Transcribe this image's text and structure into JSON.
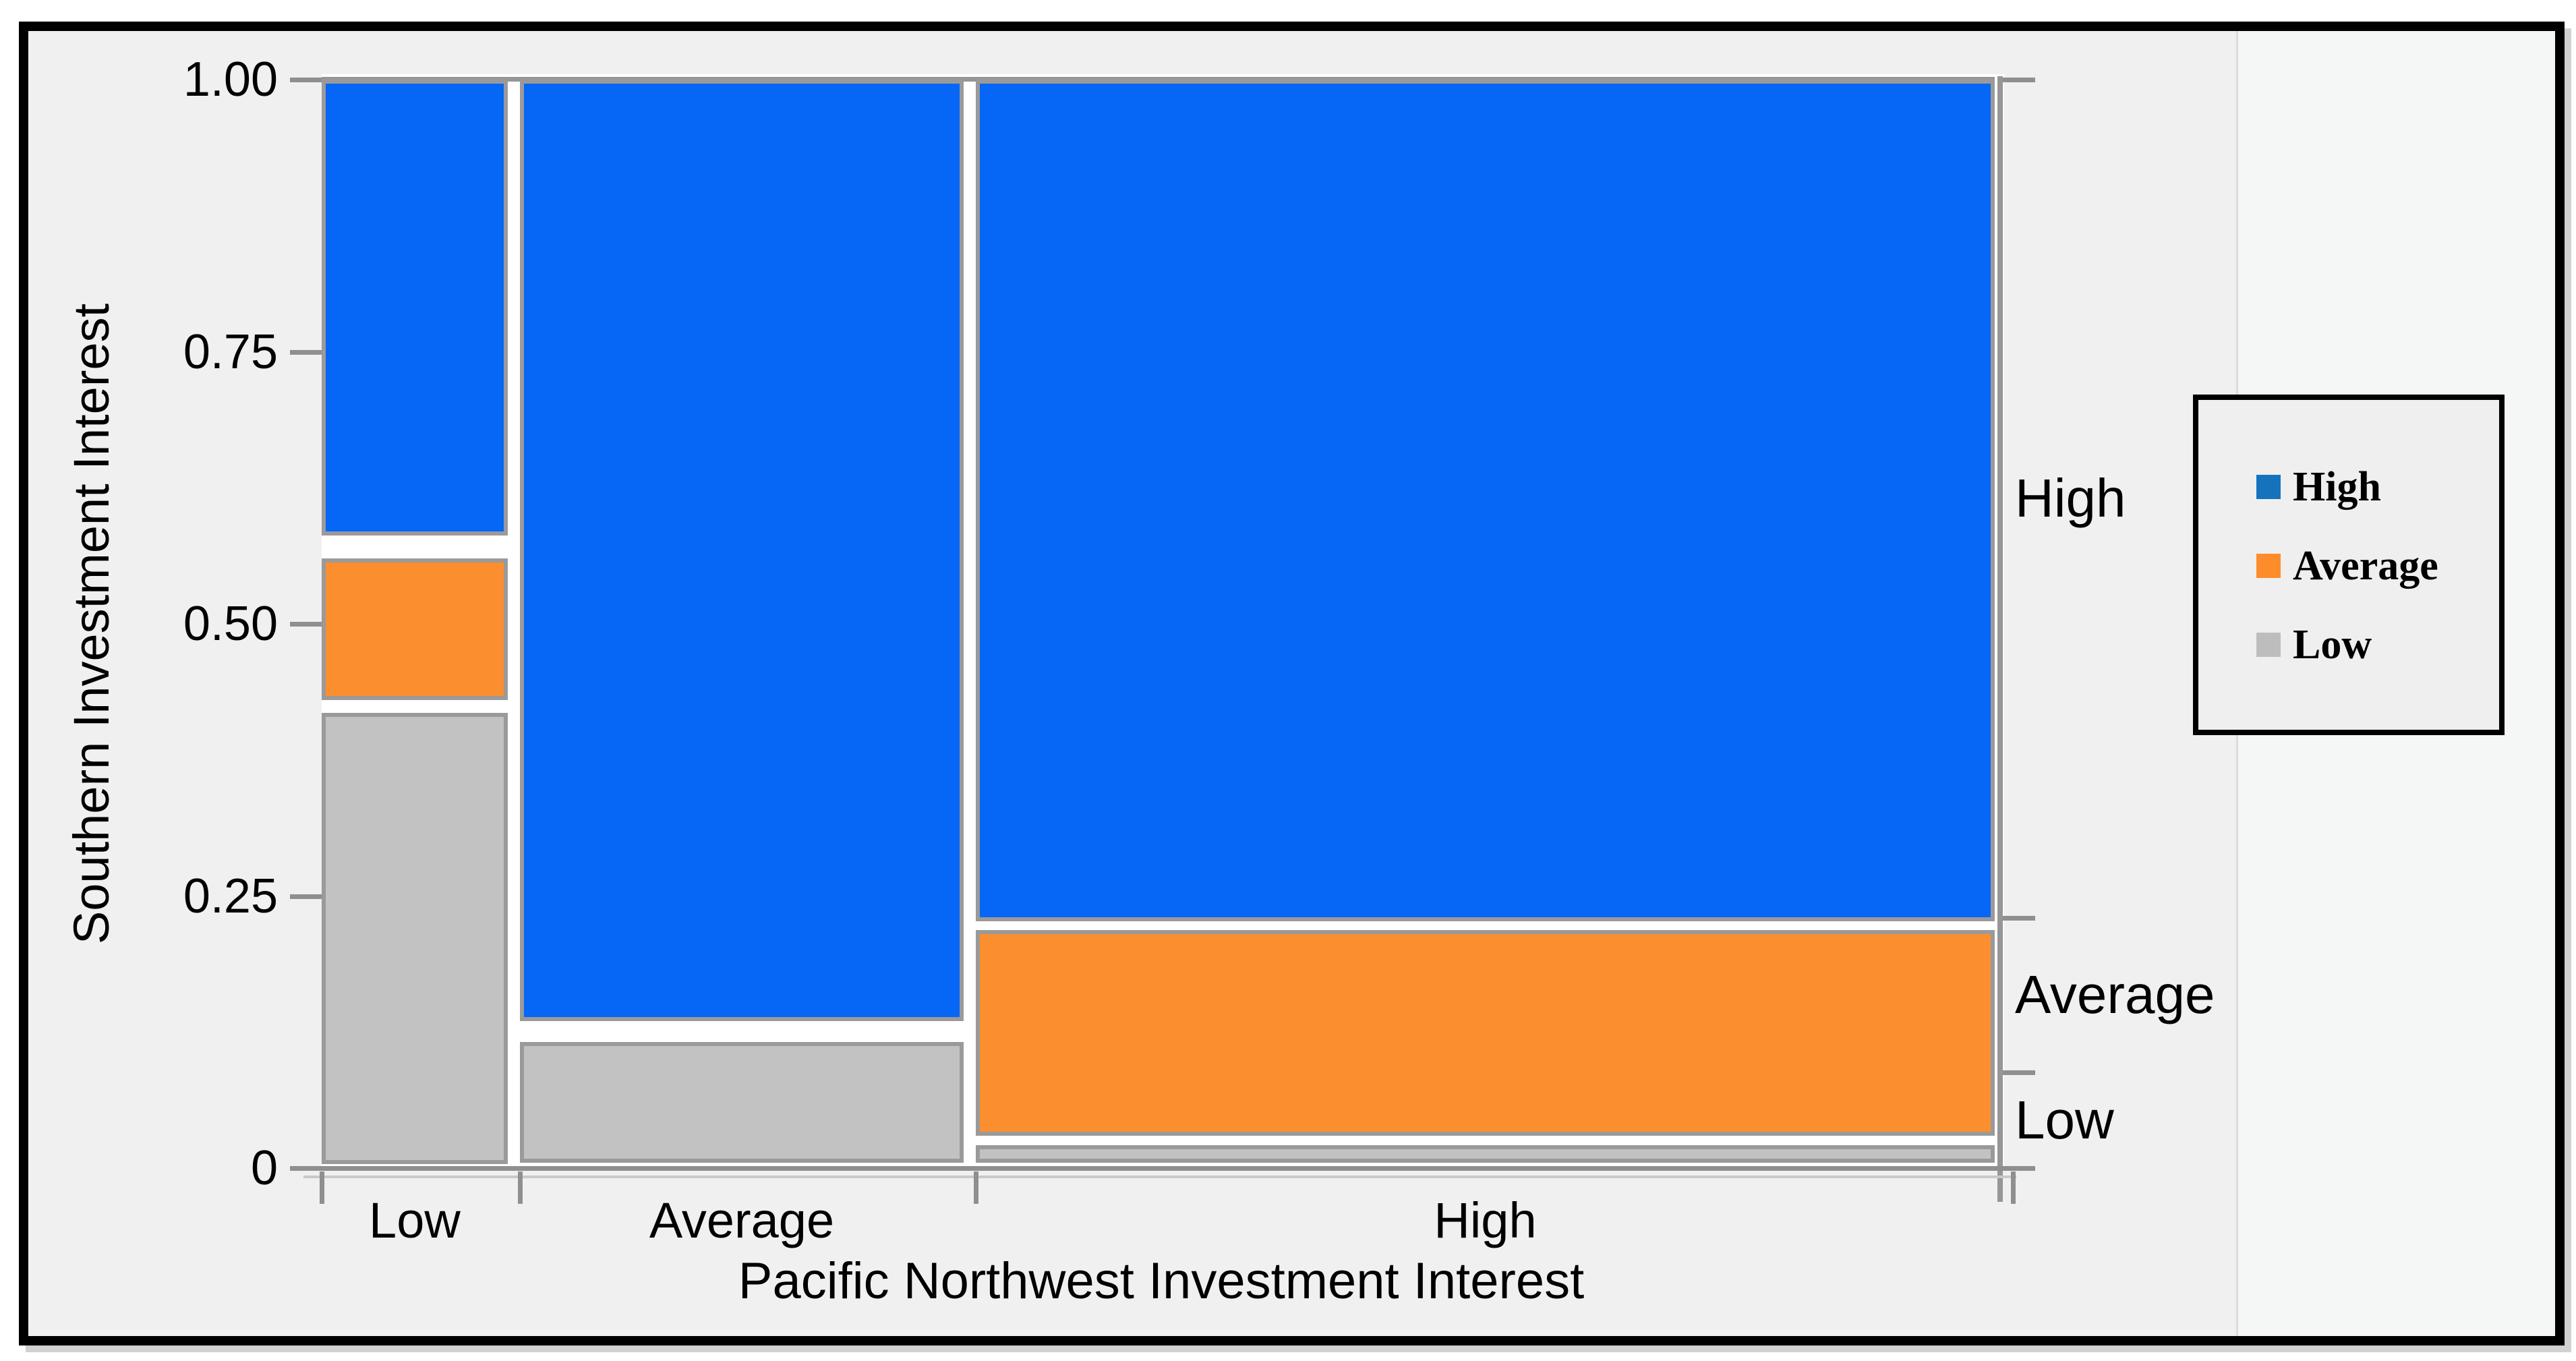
{
  "y_axis": {
    "title": "Southern Investment Interest"
  },
  "x_axis": {
    "title": "Pacific Northwest Investment Interest"
  },
  "legend": {
    "items": [
      {
        "label": "High",
        "color": "#1573be"
      },
      {
        "label": "Average",
        "color": "#fc8d2a"
      },
      {
        "label": "Low",
        "color": "#bdbdbd"
      }
    ]
  },
  "colors": {
    "segment_high": "#0666f6",
    "segment_average": "#fb8e2f",
    "segment_low": "#c2c2c2",
    "segment_border": "#9a9a9a",
    "axis": "#8f8f8f",
    "background": "#f0f0f0",
    "background_right": "#f5f6f6",
    "plot_background": "#ffffff",
    "legend_background": "#efefef",
    "legend_border": "#000000",
    "frame_border": "#000000",
    "text": "#000000"
  },
  "chart_data": {
    "type": "mosaic",
    "title": "",
    "xlabel": "Pacific Northwest Investment Interest",
    "ylabel": "Southern Investment Interest",
    "x_categories": [
      "Low",
      "Average",
      "High"
    ],
    "y_categories": [
      "High",
      "Average",
      "Low"
    ],
    "y_axis_ticks": [
      {
        "label": "1.00",
        "value": 1.0
      },
      {
        "label": "0.75",
        "value": 0.75
      },
      {
        "label": "0.50",
        "value": 0.5
      },
      {
        "label": "0.25",
        "value": 0.25
      },
      {
        "label": "0",
        "value": 0.0
      }
    ],
    "ylim": [
      0,
      1
    ],
    "right_axis_tick_values": [
      1.0,
      0.23,
      0.088,
      0.0
    ],
    "right_axis_labels": [
      "High",
      "Average",
      "Low"
    ],
    "x_marginal_proportions": {
      "Low": 0.11,
      "Average": 0.27,
      "High": 0.62
    },
    "y_marginal_proportions": {
      "High": 0.77,
      "Average": 0.142,
      "Low": 0.088
    },
    "conditional_proportions": [
      {
        "x": "Low",
        "High": 0.43,
        "Average": 0.14,
        "Low": 0.43
      },
      {
        "x": "Average",
        "High": 0.87,
        "Average": 0.0,
        "Low": 0.13
      },
      {
        "x": "High",
        "High": 0.78,
        "Average": 0.19,
        "Low": 0.03
      }
    ],
    "columns": [
      {
        "category": "Low",
        "x_span": [
          0.0,
          0.1112
        ],
        "segments": [
          {
            "y_category": "High",
            "v0": 0.581,
            "v1": 1.0
          },
          {
            "y_category": "Average",
            "v0": 0.43,
            "v1": 0.56
          },
          {
            "y_category": "Low",
            "v0": 0.004,
            "v1": 0.418
          }
        ]
      },
      {
        "category": "Average",
        "x_span": [
          0.1185,
          0.3837
        ],
        "segments": [
          {
            "y_category": "High",
            "v0": 0.135,
            "v1": 1.0
          },
          {
            "y_category": "Low",
            "v0": 0.005,
            "v1": 0.116
          }
        ]
      },
      {
        "category": "High",
        "x_span": [
          0.391,
          1.0
        ],
        "segments": [
          {
            "y_category": "High",
            "v0": 0.227,
            "v1": 1.0
          },
          {
            "y_category": "Average",
            "v0": 0.03,
            "v1": 0.219
          },
          {
            "y_category": "Low",
            "v0": 0.005,
            "v1": 0.021
          }
        ]
      }
    ],
    "legend_entries": [
      "High",
      "Average",
      "Low"
    ],
    "legend_position": "right",
    "grid": false
  }
}
